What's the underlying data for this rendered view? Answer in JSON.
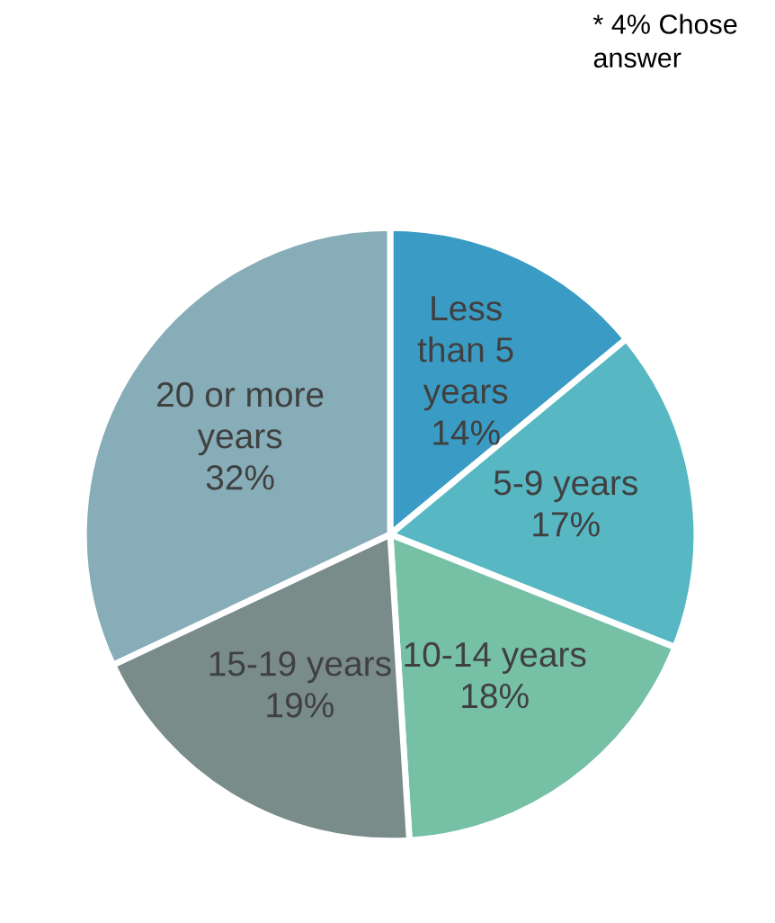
{
  "chart_data": {
    "type": "pie",
    "categories": [
      "Less\nthan 5\nyears",
      "5-9 years",
      "10-14 years",
      "15-19 years",
      "20 or more\nyears"
    ],
    "values": [
      14,
      17,
      18,
      19,
      32
    ],
    "value_labels": [
      "14%",
      "17%",
      "18%",
      "19%",
      "32%"
    ],
    "colors": [
      "#3a9cc4",
      "#57b8c4",
      "#76c0a6",
      "#7a8c8a",
      "#87adb8"
    ],
    "annotations": [
      "* 4% Chose\nanswer"
    ]
  }
}
